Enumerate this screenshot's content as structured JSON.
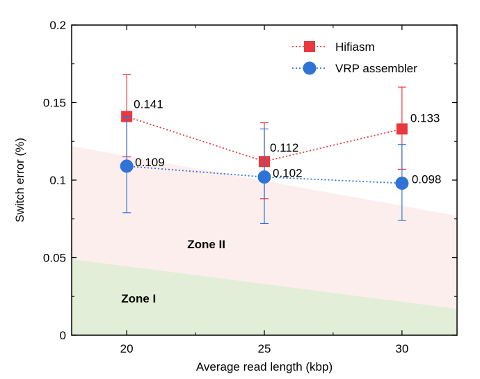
{
  "chart_data": {
    "type": "line",
    "title": "",
    "xlabel": "Average read length (kbp)",
    "ylabel": "Switch error (%)",
    "x": [
      20,
      25,
      30
    ],
    "xlim": [
      18,
      32
    ],
    "ylim": [
      0,
      0.2
    ],
    "xticks": [
      20,
      25,
      30
    ],
    "xtick_labels": [
      "20",
      "25",
      "30"
    ],
    "yticks": [
      0,
      0.05,
      0.1,
      0.15,
      0.2
    ],
    "ytick_labels": [
      "0",
      "0.05",
      "0.1",
      "0.15",
      "0.2"
    ],
    "series": [
      {
        "name": "Hifiasm",
        "marker": "square",
        "color": "#e8393f",
        "values": [
          0.141,
          0.112,
          0.133
        ],
        "error_low": [
          0.115,
          0.088,
          0.107
        ],
        "error_high": [
          0.168,
          0.137,
          0.16
        ],
        "labels": [
          "0.141",
          "0.112",
          "0.133"
        ]
      },
      {
        "name": "VRP assembler",
        "marker": "circle",
        "color": "#2f73d6",
        "values": [
          0.109,
          0.102,
          0.098
        ],
        "error_low": [
          0.079,
          0.072,
          0.074
        ],
        "error_high": [
          0.141,
          0.133,
          0.123
        ],
        "labels": [
          "0.109",
          "0.102",
          "0.098"
        ]
      }
    ],
    "zones": [
      {
        "name": "Zone I",
        "color": "#e3eed8",
        "label_at": [
          19.8,
          0.021
        ],
        "boundary": [
          [
            18,
            0.049
          ],
          [
            32,
            0.017
          ]
        ]
      },
      {
        "name": "Zone II",
        "color": "#fdeeee",
        "label_at": [
          22.2,
          0.056
        ],
        "boundary": [
          [
            18,
            0.122
          ],
          [
            32,
            0.077
          ]
        ]
      }
    ],
    "legend_position": "top-right",
    "grid": false
  }
}
